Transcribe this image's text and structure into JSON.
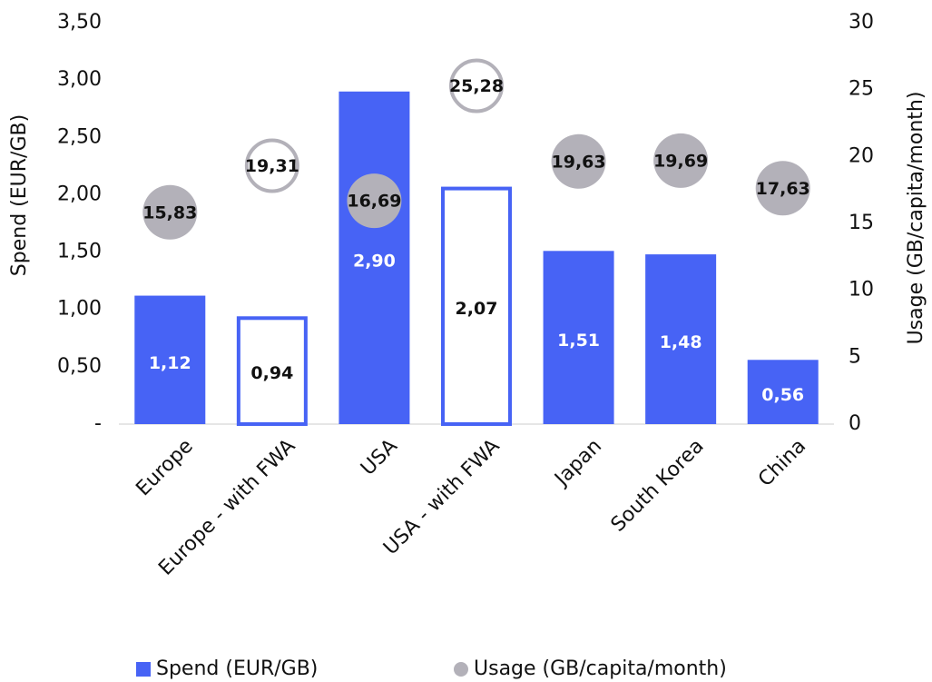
{
  "chart_data": {
    "type": "bar",
    "categories": [
      "Europe",
      "Europe - with FWA",
      "USA",
      "USA - with FWA",
      "Japan",
      "South Korea",
      "China"
    ],
    "ylabel": "Spend (EUR/GB)",
    "y2label": "Usage (GB/capita/month)",
    "ylim": [
      0,
      3.5
    ],
    "yticks": [
      {
        "value": 0,
        "label": "-"
      },
      {
        "value": 0.5,
        "label": "0,50"
      },
      {
        "value": 1,
        "label": "1,00"
      },
      {
        "value": 1.5,
        "label": "1,50"
      },
      {
        "value": 2,
        "label": "2,00"
      },
      {
        "value": 2.5,
        "label": "2,50"
      },
      {
        "value": 3,
        "label": "3,00"
      },
      {
        "value": 3.5,
        "label": "3,50"
      }
    ],
    "y2lim": [
      0,
      30
    ],
    "y2ticks": [
      0,
      5,
      10,
      15,
      20,
      25,
      30
    ],
    "legend": "bottom",
    "series": [
      {
        "name": "Spend (EUR/GB)",
        "type": "bar",
        "color": "#4763f5",
        "values": [
          1.12,
          0.94,
          2.9,
          2.07,
          1.51,
          1.48,
          0.56
        ],
        "value_labels": [
          "1,12",
          "0,94",
          "2,90",
          "2,07",
          "1,51",
          "1,48",
          "0,56"
        ],
        "styles": [
          "filled",
          "outline",
          "filled",
          "outline",
          "filled",
          "filled",
          "filled"
        ]
      },
      {
        "name": "Usage (GB/capita/month)",
        "type": "scatter",
        "axis": "y2",
        "color": "#b3b1b9",
        "values": [
          15.83,
          19.31,
          16.69,
          25.28,
          19.63,
          19.69,
          17.63
        ],
        "value_labels": [
          "15,83",
          "19,31",
          "16,69",
          "25,28",
          "19,63",
          "19,69",
          "17,63"
        ],
        "styles": [
          "filled",
          "outline",
          "filled",
          "outline",
          "filled",
          "filled",
          "filled"
        ]
      }
    ]
  }
}
